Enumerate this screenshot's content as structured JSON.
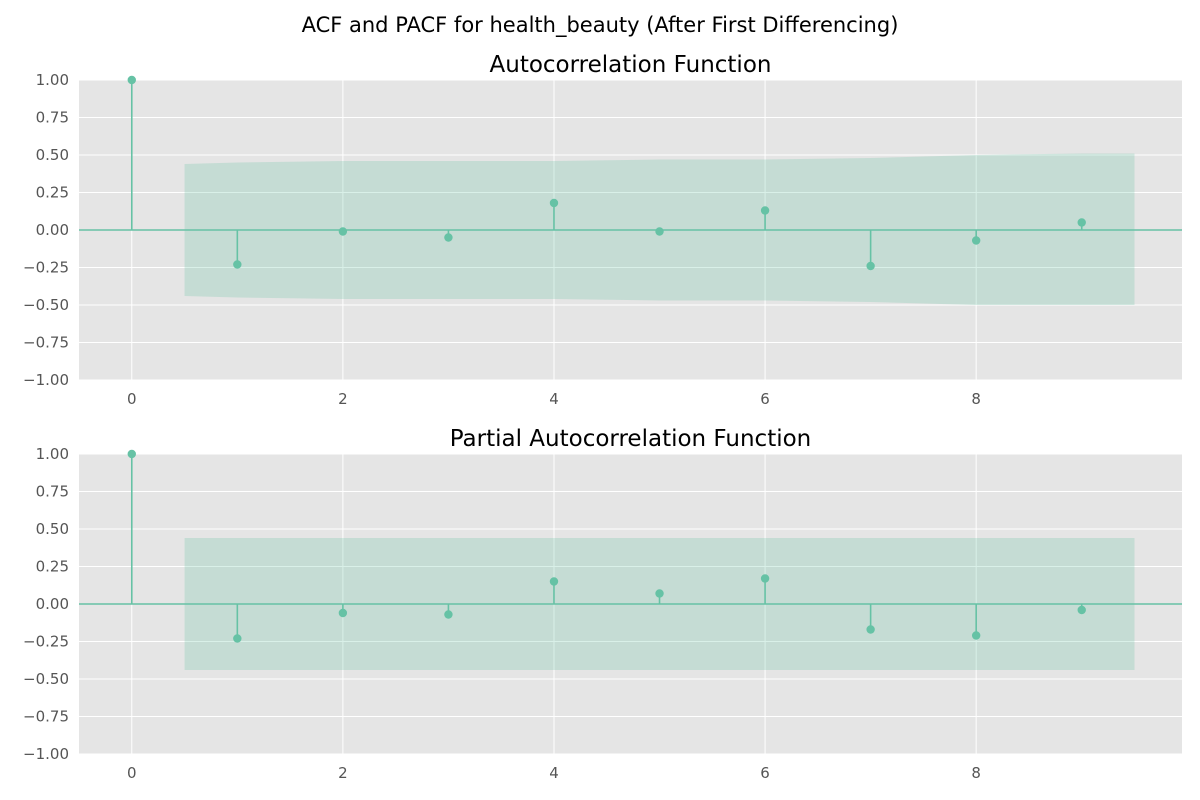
{
  "figure_title": "ACF and PACF for health_beauty (After First Differencing)",
  "colors": {
    "panel_bg": "#e5e5e5",
    "grid": "#ffffff",
    "series": "#66c2a5",
    "band": "#c5ddd5",
    "tick_text": "#555555"
  },
  "chart_data": [
    {
      "type": "stem",
      "title": "Autocorrelation Function",
      "xlabel": "",
      "ylabel": "",
      "xlim": [
        -0.5,
        9.95
      ],
      "ylim": [
        -1.0,
        1.0
      ],
      "x_ticks": [
        0,
        2,
        4,
        6,
        8
      ],
      "y_ticks": [
        1.0,
        0.75,
        0.5,
        0.25,
        0.0,
        -0.25,
        -0.5,
        -0.75,
        -1.0
      ],
      "y_tick_labels": [
        "1.00",
        "0.75",
        "0.50",
        "0.25",
        "0.00",
        "−0.25",
        "−0.50",
        "−0.75",
        "−1.00"
      ],
      "grid": true,
      "lags": [
        0,
        1,
        2,
        3,
        4,
        5,
        6,
        7,
        8,
        9
      ],
      "values": [
        1.0,
        -0.23,
        -0.01,
        -0.05,
        0.18,
        -0.01,
        0.13,
        -0.24,
        -0.07,
        0.05
      ],
      "confidence_band": {
        "x": [
          0.5,
          1,
          2,
          3,
          4,
          5,
          6,
          7,
          8,
          9,
          9.5
        ],
        "upper": [
          0.44,
          0.45,
          0.46,
          0.46,
          0.46,
          0.47,
          0.47,
          0.48,
          0.5,
          0.51,
          0.51
        ],
        "lower": [
          -0.44,
          -0.45,
          -0.46,
          -0.46,
          -0.46,
          -0.47,
          -0.47,
          -0.48,
          -0.5,
          -0.5,
          -0.5
        ]
      }
    },
    {
      "type": "stem",
      "title": "Partial Autocorrelation Function",
      "xlabel": "",
      "ylabel": "",
      "xlim": [
        -0.5,
        9.95
      ],
      "ylim": [
        -1.0,
        1.0
      ],
      "x_ticks": [
        0,
        2,
        4,
        6,
        8
      ],
      "y_ticks": [
        1.0,
        0.75,
        0.5,
        0.25,
        0.0,
        -0.25,
        -0.5,
        -0.75,
        -1.0
      ],
      "y_tick_labels": [
        "1.00",
        "0.75",
        "0.50",
        "0.25",
        "0.00",
        "−0.25",
        "−0.50",
        "−0.75",
        "−1.00"
      ],
      "grid": true,
      "lags": [
        0,
        1,
        2,
        3,
        4,
        5,
        6,
        7,
        8,
        9
      ],
      "values": [
        1.0,
        -0.23,
        -0.06,
        -0.07,
        0.15,
        0.07,
        0.17,
        -0.17,
        -0.21,
        -0.04
      ],
      "confidence_band": {
        "x": [
          0.5,
          9.5
        ],
        "upper": [
          0.44,
          0.44
        ],
        "lower": [
          -0.44,
          -0.44
        ]
      }
    }
  ]
}
